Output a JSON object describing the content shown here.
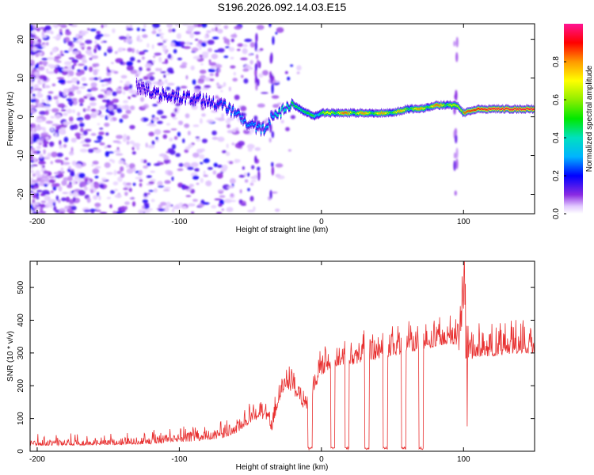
{
  "figure_title": "S196.2026.092.14.03.E15",
  "colors": {
    "snr_line": "#e83030",
    "frame": "#000000"
  },
  "chart_data": [
    {
      "type": "heatmap",
      "title": "S196.2026.092.14.03.E15",
      "xlabel": "Height of straight line (km)",
      "ylabel": "Frequency (Hz)",
      "xlim": [
        -205,
        150
      ],
      "ylim": [
        -25,
        24
      ],
      "xticks": [
        -200,
        -100,
        0,
        100
      ],
      "xtick_labels": [
        "-200",
        "-100",
        "0",
        "100"
      ],
      "yticks": [
        -20,
        -10,
        0,
        10,
        20
      ],
      "ytick_labels": [
        "-20",
        "-10",
        "0",
        "10",
        "20"
      ],
      "colorbar": {
        "label": "Normalized spectral amplitude",
        "range": [
          0,
          1.0
        ],
        "ticks": [
          0,
          0.2,
          0.4,
          0.6,
          0.8
        ],
        "tick_labels": [
          "0.0",
          "0.2",
          "0.4",
          "0.6",
          "0.8"
        ],
        "colormap": "rainbow (violet-blue-cyan-green-yellow-orange-red-magenta)"
      },
      "dominant_frequency_track": {
        "x": [
          -130,
          -115,
          -100,
          -90,
          -80,
          -70,
          -60,
          -55,
          -50,
          -45,
          -40,
          -35,
          -30,
          -25,
          -20,
          -15,
          -10,
          -5,
          0,
          10,
          20,
          30,
          40,
          50,
          60,
          70,
          80,
          90,
          95,
          100,
          110,
          120,
          130,
          140,
          150
        ],
        "y": [
          8,
          6,
          5,
          5,
          4,
          3,
          1,
          -1,
          -2,
          -3,
          -3,
          0,
          1,
          2,
          3,
          2,
          1,
          0,
          1,
          1,
          1,
          1,
          1,
          1,
          2,
          2,
          3,
          3,
          3,
          1,
          2,
          2,
          2,
          2,
          2
        ],
        "peak_amplitude": [
          0.15,
          0.2,
          0.2,
          0.2,
          0.2,
          0.25,
          0.3,
          0.3,
          0.3,
          0.3,
          0.35,
          0.3,
          0.45,
          0.4,
          0.5,
          0.45,
          0.5,
          0.55,
          0.6,
          0.85,
          0.85,
          0.8,
          0.8,
          0.8,
          0.75,
          0.8,
          0.85,
          0.8,
          0.6,
          0.85,
          0.9,
          0.95,
          0.95,
          0.95,
          0.95
        ]
      }
    },
    {
      "type": "line",
      "xlabel": "Height of straight line (km)",
      "ylabel": "SNR (10 * v/v)",
      "xlim": [
        -205,
        150
      ],
      "ylim": [
        0,
        580
      ],
      "xticks": [
        -200,
        -100,
        0,
        100
      ],
      "xtick_labels": [
        "-200",
        "-100",
        "0",
        "100"
      ],
      "yticks": [
        0,
        100,
        200,
        300,
        400,
        500
      ],
      "ytick_labels": [
        "0",
        "100",
        "200",
        "300",
        "400",
        "500"
      ],
      "series": [
        {
          "name": "SNR",
          "x": [
            -205,
            -180,
            -160,
            -140,
            -120,
            -100,
            -90,
            -80,
            -70,
            -60,
            -55,
            -50,
            -45,
            -40,
            -35,
            -30,
            -25,
            -20,
            -15,
            -10,
            -5,
            0,
            5,
            10,
            15,
            20,
            30,
            40,
            50,
            60,
            70,
            80,
            90,
            95,
            100,
            105,
            110,
            120,
            130,
            140,
            150
          ],
          "y": [
            18,
            18,
            18,
            20,
            22,
            28,
            30,
            35,
            40,
            55,
            70,
            85,
            95,
            100,
            60,
            150,
            200,
            170,
            150,
            110,
            190,
            230,
            250,
            260,
            265,
            260,
            275,
            280,
            290,
            300,
            310,
            320,
            330,
            320,
            280,
            280,
            290,
            290,
            295,
            300,
            300
          ],
          "y_band_upper": [
            35,
            35,
            35,
            40,
            45,
            55,
            65,
            70,
            80,
            100,
            120,
            140,
            150,
            150,
            110,
            200,
            250,
            230,
            220,
            200,
            260,
            300,
            310,
            320,
            330,
            330,
            350,
            360,
            370,
            380,
            385,
            390,
            395,
            390,
            580,
            360,
            370,
            380,
            380,
            390,
            390
          ],
          "dropouts_x": [
            -8,
            8,
            18,
            32,
            45,
            58,
            70
          ],
          "dropout_floor": 5
        }
      ]
    }
  ]
}
